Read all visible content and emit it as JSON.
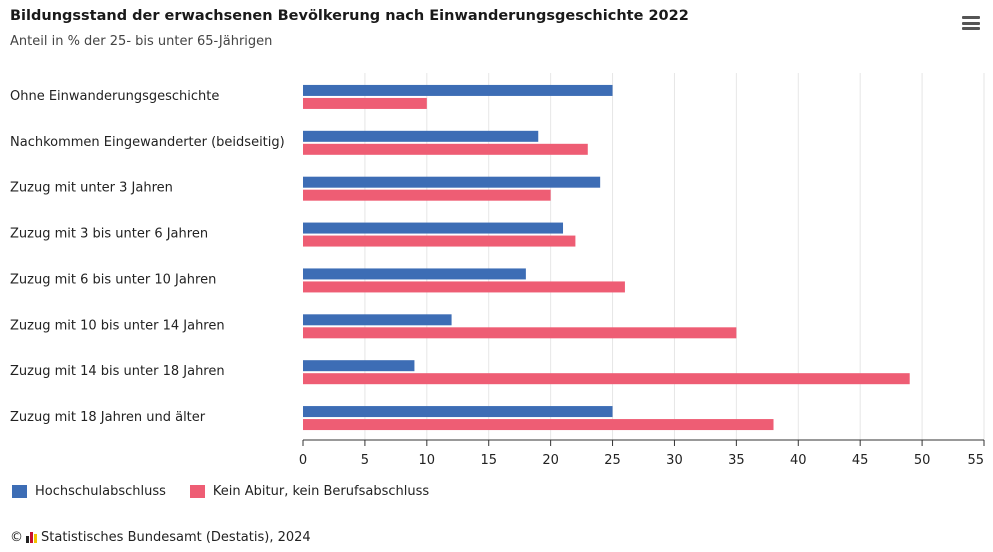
{
  "chart_data": {
    "type": "bar",
    "orientation": "horizontal",
    "title": "Bildungsstand der erwachsenen Bevölkerung nach Einwanderungsgeschichte 2022",
    "subtitle": "Anteil in % der 25- bis unter 65-Jährigen",
    "categories": [
      "Ohne Einwanderungsgeschichte",
      "Nachkommen Eingewanderter (beidseitig)",
      "Zuzug mit unter 3 Jahren",
      "Zuzug mit 3 bis unter 6 Jahren",
      "Zuzug mit 6 bis unter 10 Jahren",
      "Zuzug mit 10 bis unter 14 Jahren",
      "Zuzug mit 14 bis unter 18 Jahren",
      "Zuzug mit 18 Jahren und älter"
    ],
    "series": [
      {
        "name": "Hochschulabschluss",
        "color": "#3d6db5",
        "values": [
          25,
          19,
          24,
          21,
          18,
          12,
          9,
          25
        ]
      },
      {
        "name": "Kein Abitur, kein Berufsabschluss",
        "color": "#ee5d74",
        "values": [
          10,
          23,
          20,
          22,
          26,
          35,
          49,
          38
        ]
      }
    ],
    "xlim": [
      0,
      55
    ],
    "xticks": [
      "0",
      "5",
      "10",
      "15",
      "20",
      "25",
      "30",
      "35",
      "40",
      "45",
      "50",
      "55"
    ],
    "grid": true,
    "legend": "bottom-left"
  },
  "source": "Statistisches Bundesamt (Destatis), 2024",
  "copyright_symbol": "©",
  "icons": {
    "menu": "hamburger-menu-icon"
  }
}
